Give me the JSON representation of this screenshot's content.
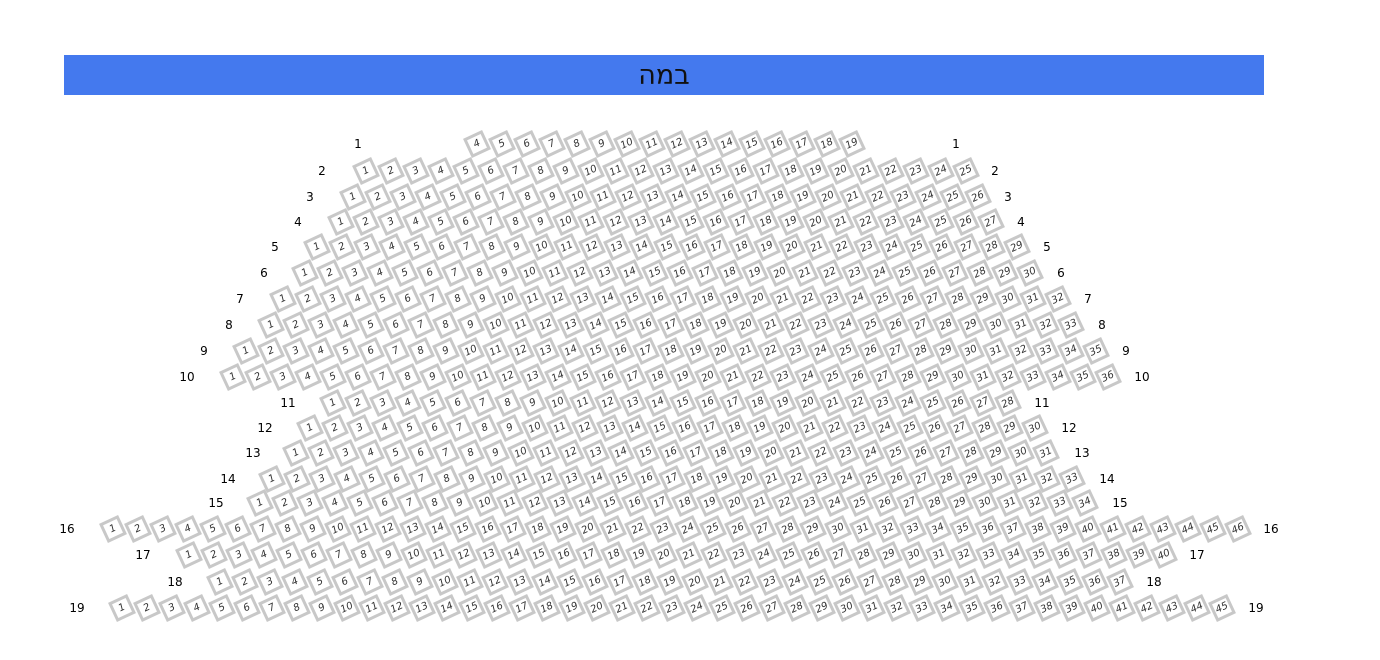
{
  "stage": {
    "label": "במה",
    "color": "#4479ee"
  },
  "seat_border_color": "#c8c8c8",
  "rows": [
    {
      "row": "1",
      "first": 4,
      "last": 19
    },
    {
      "row": "2",
      "first": 1,
      "last": 25
    },
    {
      "row": "3",
      "first": 1,
      "last": 26
    },
    {
      "row": "4",
      "first": 1,
      "last": 27
    },
    {
      "row": "5",
      "first": 1,
      "last": 29
    },
    {
      "row": "6",
      "first": 1,
      "last": 30
    },
    {
      "row": "7",
      "first": 1,
      "last": 32
    },
    {
      "row": "8",
      "first": 1,
      "last": 33
    },
    {
      "row": "9",
      "first": 1,
      "last": 35
    },
    {
      "row": "10",
      "first": 1,
      "last": 36
    },
    {
      "row": "11",
      "first": 1,
      "last": 28
    },
    {
      "row": "12",
      "first": 1,
      "last": 30
    },
    {
      "row": "13",
      "first": 1,
      "last": 31
    },
    {
      "row": "14",
      "first": 1,
      "last": 33
    },
    {
      "row": "15",
      "first": 1,
      "last": 34
    },
    {
      "row": "16",
      "first": 1,
      "last": 46
    },
    {
      "row": "17",
      "first": 1,
      "last": 40
    },
    {
      "row": "18",
      "first": 1,
      "last": 37
    },
    {
      "row": "19",
      "first": 1,
      "last": 45
    }
  ]
}
